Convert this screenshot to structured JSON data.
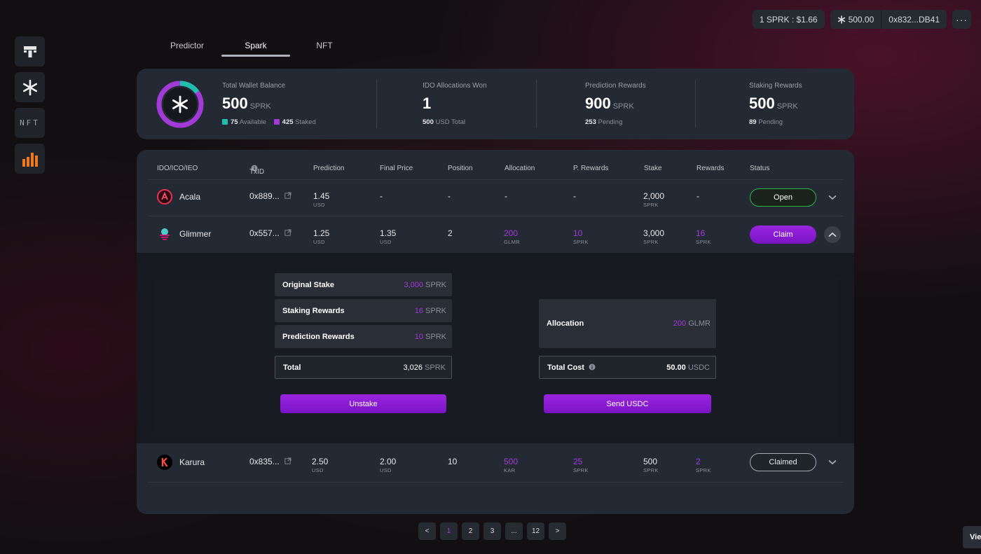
{
  "header": {
    "price": "1 SPRK : $1.66",
    "balance": "500.00",
    "balance_icon": "spark-icon",
    "wallet": "0x832...DB41",
    "more": "···"
  },
  "sidebar": {
    "items": [
      {
        "name": "logo-t",
        "icon": "t-logo-icon"
      },
      {
        "name": "spark",
        "icon": "spark-icon"
      },
      {
        "name": "nft",
        "icon": "nft-icon",
        "label": "NFT"
      },
      {
        "name": "predictor",
        "icon": "bar-chart-icon"
      }
    ]
  },
  "tabs": [
    "Predictor",
    "Spark",
    "NFT"
  ],
  "active_tab": "Spark",
  "summary": {
    "wallet": {
      "label": "Total Wallet Balance",
      "value": "500",
      "unit": "SPRK",
      "available_value": "75",
      "available_label": "Available",
      "staked_value": "425",
      "staked_label": "Staked",
      "available_fraction": 0.15,
      "colors": {
        "available": "#1fbfae",
        "staked": "#a23ad8"
      }
    },
    "ido": {
      "label": "IDO Allocations Won",
      "value": "1",
      "sub_value": "500",
      "sub_label": "USD Total"
    },
    "prediction": {
      "label": "Prediction Rewards",
      "value": "900",
      "unit": "SPRK",
      "sub_value": "253",
      "sub_label": "Pending"
    },
    "staking": {
      "label": "Staking Rewards",
      "value": "500",
      "unit": "SPRK",
      "sub_value": "89",
      "sub_label": "Pending"
    }
  },
  "table": {
    "columns": [
      "IDO/ICO/IEO",
      "TxID",
      "Prediction",
      "Final Price",
      "Position",
      "Allocation",
      "P. Rewards",
      "Stake",
      "Rewards",
      "Status"
    ],
    "rows": [
      {
        "name": "Acala",
        "icon": "acala-icon",
        "txid": "0x889...",
        "prediction": "1.45",
        "prediction_unit": "USD",
        "final_price": "-",
        "final_price_unit": "",
        "position": "-",
        "allocation": "-",
        "allocation_unit": "",
        "p_rewards": "-",
        "p_rewards_unit": "",
        "stake": "2,000",
        "stake_unit": "SPRK",
        "rewards": "-",
        "rewards_unit": "",
        "status": "Open"
      },
      {
        "name": "Glimmer",
        "icon": "glimmer-icon",
        "txid": "0x557...",
        "prediction": "1.25",
        "prediction_unit": "USD",
        "final_price": "1.35",
        "final_price_unit": "USD",
        "position": "2",
        "allocation": "200",
        "allocation_unit": "GLMR",
        "p_rewards": "10",
        "p_rewards_unit": "SPRK",
        "stake": "3,000",
        "stake_unit": "SPRK",
        "rewards": "16",
        "rewards_unit": "SPRK",
        "status": "Claim"
      },
      {
        "name": "Karura",
        "icon": "karura-icon",
        "txid": "0x835...",
        "prediction": "2.50",
        "prediction_unit": "USD",
        "final_price": "2.00",
        "final_price_unit": "USD",
        "position": "10",
        "allocation": "500",
        "allocation_unit": "KAR",
        "p_rewards": "25",
        "p_rewards_unit": "SPRK",
        "stake": "500",
        "stake_unit": "SPRK",
        "rewards": "2",
        "rewards_unit": "SPRK",
        "status": "Claimed"
      }
    ]
  },
  "expanded": {
    "original_stake_label": "Original Stake",
    "original_stake_value": "3,000",
    "staking_rewards_label": "Staking  Rewards",
    "staking_rewards_value": "16",
    "prediction_rewards_label": "Prediction Rewards",
    "prediction_rewards_value": "10",
    "total_label": "Total",
    "total_value": "3,026",
    "unit": "SPRK",
    "unstake_button": "Unstake",
    "allocation_label": "Allocation",
    "allocation_value": "200",
    "allocation_unit": "GLMR",
    "total_cost_label": "Total Cost",
    "total_cost_value": "50.00",
    "total_cost_unit": "USDC",
    "send_button": "Send USDC"
  },
  "pagination": {
    "prev": "<",
    "pages": [
      "1",
      "2",
      "3",
      "...",
      "12"
    ],
    "active": "1",
    "next": ">"
  },
  "view_button": "Vie"
}
